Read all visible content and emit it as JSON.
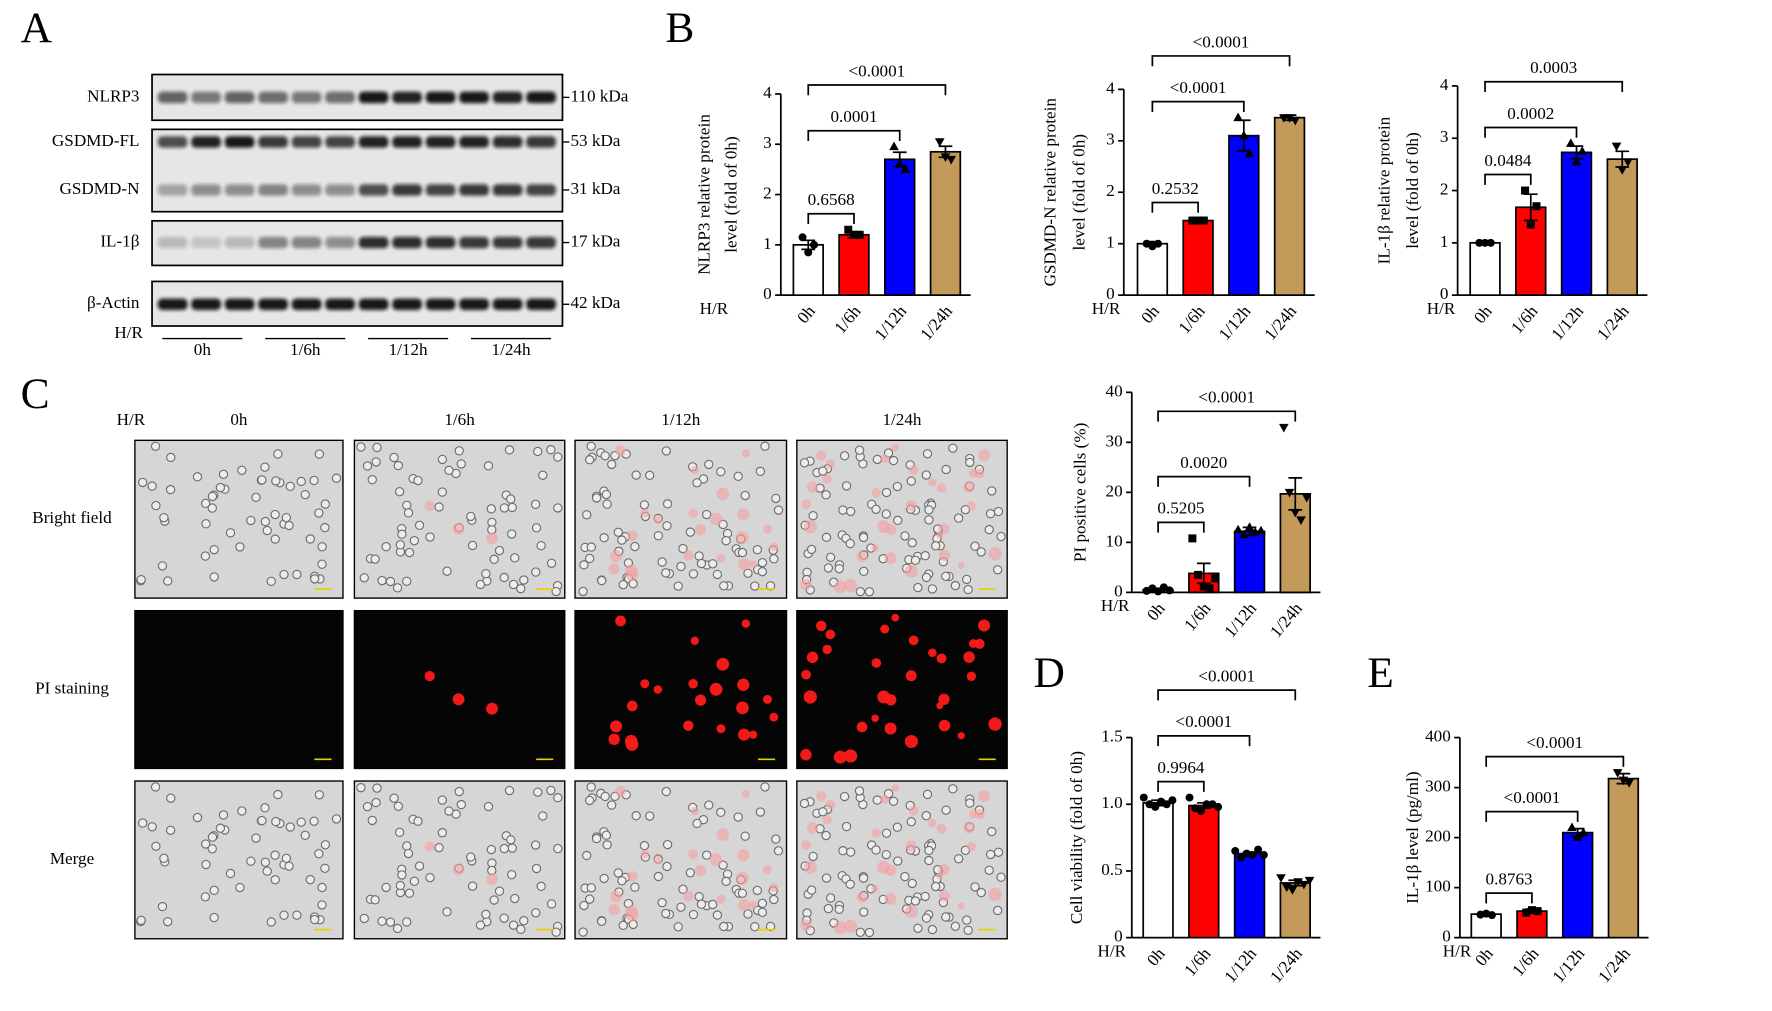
{
  "panel_labels": [
    "A",
    "B",
    "C",
    "D",
    "E"
  ],
  "western_blot": {
    "rows": [
      {
        "label": "NLRP3",
        "size": "110 kDa"
      },
      {
        "label": "GSDMD-FL",
        "size": "53 kDa"
      },
      {
        "label": "GSDMD-N",
        "size": "31 kDa"
      },
      {
        "label": "IL-1β",
        "size": "17 kDa"
      },
      {
        "label": "β-Actin",
        "size": "42 kDa"
      }
    ],
    "treatment_label": "H/R",
    "groups": [
      "0h",
      "1/6h",
      "1/12h",
      "1/24h"
    ]
  },
  "microscopy": {
    "treatment_label": "H/R",
    "columns": [
      "0h",
      "1/6h",
      "1/12h",
      "1/24h"
    ],
    "rows": [
      "Bright field",
      "PI staining",
      "Merge"
    ]
  },
  "chart_data": [
    {
      "type": "bar",
      "y_label": [
        "NLRP3 relative protein",
        "level (fold of 0h)"
      ],
      "x_prefix": "H/R",
      "categories": [
        "0h",
        "1/6h",
        "1/12h",
        "1/24h"
      ],
      "values": [
        1.0,
        1.2,
        2.7,
        2.85
      ],
      "errors": [
        0.09,
        0.06,
        0.14,
        0.11
      ],
      "points": [
        [
          1.15,
          0.85,
          1.0
        ],
        [
          1.3,
          1.2,
          1.2
        ],
        [
          2.95,
          2.6,
          2.5
        ],
        [
          3.05,
          2.75,
          2.7
        ]
      ],
      "colors": [
        "#ffffff",
        "#ff0000",
        "#0000ff",
        "#c49a5a"
      ],
      "markers": [
        "circle",
        "square",
        "triangle-up",
        "triangle-down"
      ],
      "ylim": [
        0,
        4
      ],
      "yticks": [
        0,
        1,
        2,
        3,
        4
      ],
      "comparisons": [
        {
          "groups": [
            "0h",
            "1/6h"
          ],
          "label": "0.6568"
        },
        {
          "groups": [
            "0h",
            "1/12h"
          ],
          "label": "0.0001"
        },
        {
          "groups": [
            "0h",
            "1/24h"
          ],
          "label": "<0.0001"
        }
      ]
    },
    {
      "type": "bar",
      "y_label": [
        "GSDMD-N relative protein",
        "level (fold of 0h)"
      ],
      "x_prefix": "H/R",
      "categories": [
        "0h",
        "1/6h",
        "1/12h",
        "1/24h"
      ],
      "values": [
        1.0,
        1.45,
        3.1,
        3.45
      ],
      "errors": [
        0.04,
        0.04,
        0.3,
        0.05
      ],
      "points": [
        [
          1.0,
          0.95,
          1.0
        ],
        [
          1.45,
          1.45,
          1.45
        ],
        [
          3.45,
          3.1,
          2.75
        ],
        [
          3.45,
          3.45,
          3.4
        ]
      ],
      "colors": [
        "#ffffff",
        "#ff0000",
        "#0000ff",
        "#c49a5a"
      ],
      "markers": [
        "circle",
        "square",
        "triangle-up",
        "triangle-down"
      ],
      "ylim": [
        0,
        4
      ],
      "yticks": [
        0,
        1,
        2,
        3,
        4
      ],
      "comparisons": [
        {
          "groups": [
            "0h",
            "1/6h"
          ],
          "label": "0.2532"
        },
        {
          "groups": [
            "0h",
            "1/12h"
          ],
          "label": "<0.0001"
        },
        {
          "groups": [
            "0h",
            "1/24h"
          ],
          "label": "<0.0001"
        }
      ]
    },
    {
      "type": "bar",
      "y_label": [
        "IL-1β relative protein",
        "level (fold of 0h)"
      ],
      "x_prefix": "H/R",
      "categories": [
        "0h",
        "1/6h",
        "1/12h",
        "1/24h"
      ],
      "values": [
        1.0,
        1.68,
        2.73,
        2.6
      ],
      "errors": [
        0.02,
        0.25,
        0.12,
        0.15
      ],
      "points": [
        [
          1.0,
          1.0,
          1.0
        ],
        [
          2.0,
          1.35,
          1.7
        ],
        [
          2.9,
          2.55,
          2.75
        ],
        [
          2.85,
          2.4,
          2.55
        ]
      ],
      "colors": [
        "#ffffff",
        "#ff0000",
        "#0000ff",
        "#c49a5a"
      ],
      "markers": [
        "circle",
        "square",
        "triangle-up",
        "triangle-down"
      ],
      "ylim": [
        0,
        4
      ],
      "yticks": [
        0,
        1,
        2,
        3,
        4
      ],
      "comparisons": [
        {
          "groups": [
            "0h",
            "1/6h"
          ],
          "label": "0.0484"
        },
        {
          "groups": [
            "0h",
            "1/12h"
          ],
          "label": "0.0002"
        },
        {
          "groups": [
            "0h",
            "1/24h"
          ],
          "label": "0.0003"
        }
      ]
    },
    {
      "type": "bar",
      "y_label": [
        "PI positive cells (%)"
      ],
      "x_prefix": "H/R",
      "categories": [
        "0h",
        "1/6h",
        "1/12h",
        "1/24h"
      ],
      "values": [
        0.5,
        3.8,
        12.2,
        19.7
      ],
      "errors": [
        0.3,
        2.0,
        0.8,
        3.2
      ],
      "points": [
        [
          0.3,
          0.8,
          0.2,
          1.0,
          0.4
        ],
        [
          10.8,
          3.5,
          1.2,
          0.8,
          2.8
        ],
        [
          12.5,
          11.5,
          13,
          12,
          12.3
        ],
        [
          33,
          20,
          16,
          14.5,
          19
        ]
      ],
      "colors": [
        "#ffffff",
        "#ff0000",
        "#0000ff",
        "#c49a5a"
      ],
      "markers": [
        "circle",
        "square",
        "triangle-up",
        "triangle-down"
      ],
      "ylim": [
        0,
        40
      ],
      "yticks": [
        0,
        10,
        20,
        30,
        40
      ],
      "comparisons": [
        {
          "groups": [
            "0h",
            "1/6h"
          ],
          "label": "0.5205"
        },
        {
          "groups": [
            "0h",
            "1/12h"
          ],
          "label": "0.0020"
        },
        {
          "groups": [
            "0h",
            "1/24h"
          ],
          "label": "<0.0001"
        }
      ]
    },
    {
      "type": "bar",
      "y_label": [
        "Cell viability (fold of 0h)"
      ],
      "x_prefix": "H/R",
      "categories": [
        "0h",
        "1/6h",
        "1/12h",
        "1/24h"
      ],
      "values": [
        1.01,
        0.99,
        0.63,
        0.41
      ],
      "errors": [
        0.02,
        0.02,
        0.01,
        0.02
      ],
      "points": [
        [
          1.05,
          1.0,
          0.98,
          1.02,
          1.0,
          1.03
        ],
        [
          1.05,
          0.97,
          0.95,
          1.0,
          1.0,
          0.98
        ],
        [
          0.65,
          0.6,
          0.63,
          0.62,
          0.66,
          0.62
        ],
        [
          0.45,
          0.38,
          0.36,
          0.42,
          0.4,
          0.43
        ]
      ],
      "colors": [
        "#ffffff",
        "#ff0000",
        "#0000ff",
        "#c49a5a"
      ],
      "markers": [
        "circle",
        "circle",
        "circle",
        "triangle-down"
      ],
      "ylim": [
        0,
        1.5
      ],
      "yticks": [
        0,
        0.5,
        {
          "value": 1,
          "label": "1.0"
        },
        1.5
      ],
      "comparisons": [
        {
          "groups": [
            "0h",
            "1/6h"
          ],
          "label": "0.9964"
        },
        {
          "groups": [
            "0h",
            "1/12h"
          ],
          "label": "<0.0001"
        },
        {
          "groups": [
            "0h",
            "1/24h"
          ],
          "label": "<0.0001"
        }
      ]
    },
    {
      "type": "bar",
      "y_label": [
        "IL-1β level (pg/ml)"
      ],
      "x_prefix": "H/R",
      "categories": [
        "0h",
        "1/6h",
        "1/12h",
        "1/24h"
      ],
      "values": [
        47,
        53,
        210,
        318
      ],
      "errors": [
        3,
        4,
        8,
        10
      ],
      "points": [
        [
          46,
          48,
          45
        ],
        [
          50,
          55,
          53
        ],
        [
          220,
          200,
          210
        ],
        [
          330,
          315,
          310
        ]
      ],
      "colors": [
        "#ffffff",
        "#ff0000",
        "#0000ff",
        "#c49a5a"
      ],
      "markers": [
        "circle",
        "square",
        "triangle-up",
        "triangle-down"
      ],
      "ylim": [
        0,
        400
      ],
      "yticks": [
        0,
        100,
        200,
        300,
        400
      ],
      "comparisons": [
        {
          "groups": [
            "0h",
            "1/6h"
          ],
          "label": "0.8763"
        },
        {
          "groups": [
            "0h",
            "1/12h"
          ],
          "label": "<0.0001"
        },
        {
          "groups": [
            "0h",
            "1/24h"
          ],
          "label": "<0.0001"
        }
      ]
    }
  ]
}
